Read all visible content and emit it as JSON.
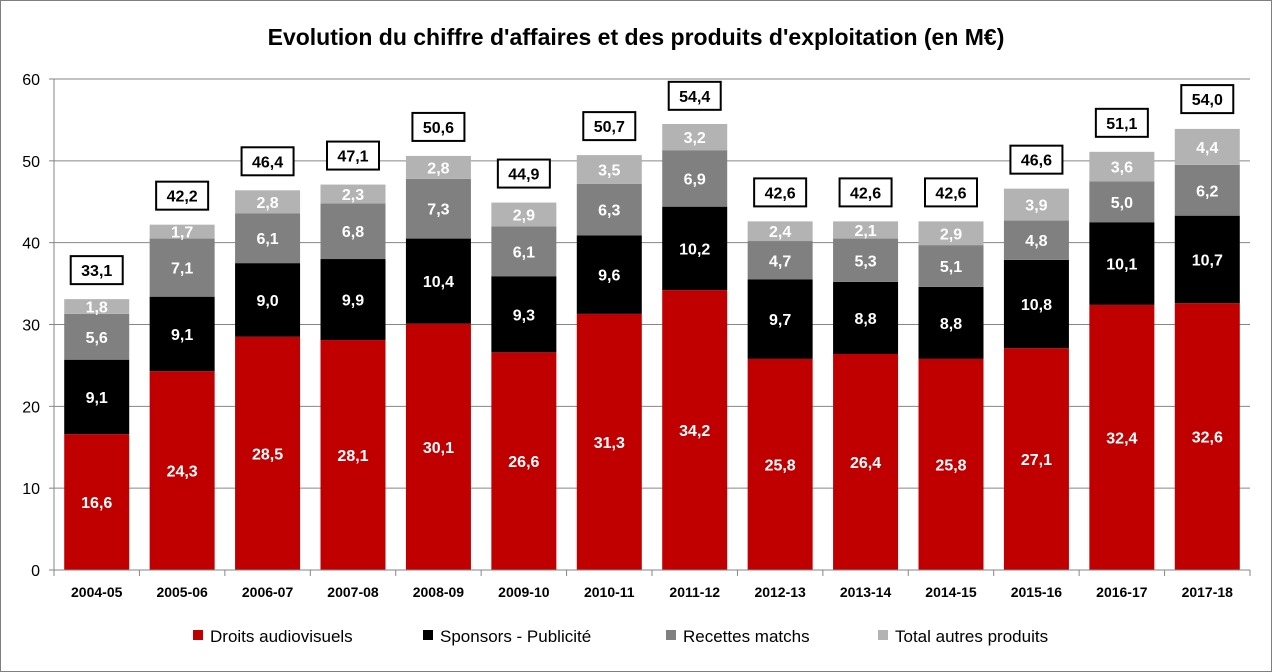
{
  "chart_data": {
    "type": "bar",
    "stacked": true,
    "title": "Evolution du chiffre d'affaires et des produits d'exploitation (en M€)",
    "categories": [
      "2004-05",
      "2005-06",
      "2006-07",
      "2007-08",
      "2008-09",
      "2009-10",
      "2010-11",
      "2011-12",
      "2012-13",
      "2013-14",
      "2014-15",
      "2015-16",
      "2016-17",
      "2017-18"
    ],
    "series": [
      {
        "name": "Droits audiovisuels",
        "color": "#c00000",
        "label_color": "#ffffff",
        "values": [
          16.6,
          24.3,
          28.5,
          28.1,
          30.1,
          26.6,
          31.3,
          34.2,
          25.8,
          26.4,
          25.8,
          27.1,
          32.4,
          32.6
        ],
        "labels": [
          "16,6",
          "24,3",
          "28,5",
          "28,1",
          "30,1",
          "26,6",
          "31,3",
          "34,2",
          "25,8",
          "26,4",
          "25,8",
          "27,1",
          "32,4",
          "32,6"
        ]
      },
      {
        "name": "Sponsors - Publicité",
        "color": "#000000",
        "label_color": "#ffffff",
        "values": [
          9.1,
          9.1,
          9.0,
          9.9,
          10.4,
          9.3,
          9.6,
          10.2,
          9.7,
          8.8,
          8.8,
          10.8,
          10.1,
          10.7
        ],
        "labels": [
          "9,1",
          "9,1",
          "9,0",
          "9,9",
          "10,4",
          "9,3",
          "9,6",
          "10,2",
          "9,7",
          "8,8",
          "8,8",
          "10,8",
          "10,1",
          "10,7"
        ]
      },
      {
        "name": "Recettes matchs",
        "color": "#808080",
        "label_color": "#ffffff",
        "values": [
          5.6,
          7.1,
          6.1,
          6.8,
          7.3,
          6.1,
          6.3,
          6.9,
          4.7,
          5.3,
          5.1,
          4.8,
          5.0,
          6.2
        ],
        "labels": [
          "5,6",
          "7,1",
          "6,1",
          "6,8",
          "7,3",
          "6,1",
          "6,3",
          "6,9",
          "4,7",
          "5,3",
          "5,1",
          "4,8",
          "5,0",
          "6,2"
        ]
      },
      {
        "name": "Total autres produits",
        "color": "#b3b3b3",
        "label_color": "#ffffff",
        "values": [
          1.8,
          1.7,
          2.8,
          2.3,
          2.8,
          2.9,
          3.5,
          3.2,
          2.4,
          2.1,
          2.9,
          3.9,
          3.6,
          4.4
        ],
        "labels": [
          "1,8",
          "1,7",
          "2,8",
          "2,3",
          "2,8",
          "2,9",
          "3,5",
          "3,2",
          "2,4",
          "2,1",
          "2,9",
          "3,9",
          "3,6",
          "4,4"
        ]
      }
    ],
    "totals": {
      "values": [
        33.1,
        42.2,
        46.4,
        47.1,
        50.6,
        44.9,
        50.7,
        54.4,
        42.6,
        42.6,
        42.6,
        46.6,
        51.1,
        54.0
      ],
      "labels": [
        "33,1",
        "42,2",
        "46,4",
        "47,1",
        "50,6",
        "44,9",
        "50,7",
        "54,4",
        "42,6",
        "42,6",
        "42,6",
        "46,6",
        "51,1",
        "54,0"
      ]
    },
    "ylim": [
      0,
      60
    ],
    "yticks": [
      0,
      10,
      20,
      30,
      40,
      50,
      60
    ],
    "ytick_labels": [
      "0",
      "10",
      "20",
      "30",
      "40",
      "50",
      "60"
    ],
    "grid": true,
    "legend_position": "bottom"
  }
}
